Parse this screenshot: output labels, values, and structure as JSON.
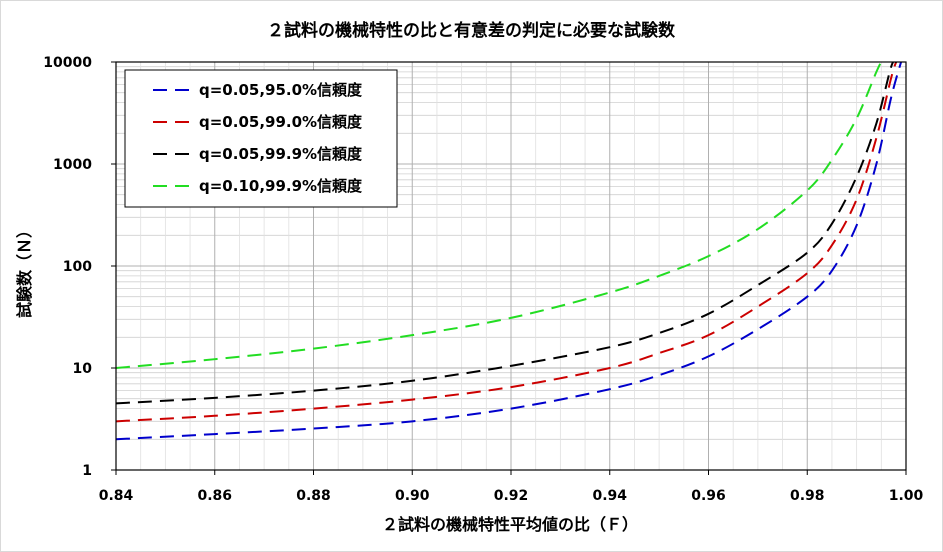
{
  "chart_data": {
    "type": "line",
    "title": "２試料の機械特性の比と有意差の判定に必要な試験数",
    "xlabel": "２試料の機械特性平均値の比（Ｆ）",
    "ylabel": "試験数（Ｎ）",
    "xlim": [
      0.84,
      1.0
    ],
    "ylim": [
      1,
      10000
    ],
    "yscale": "log",
    "grid": true,
    "legend_position": "top-left",
    "x_tick_labels": [
      "0.84",
      "0.86",
      "0.88",
      "0.90",
      "0.92",
      "0.94",
      "0.96",
      "0.98",
      "1.00"
    ],
    "y_tick_labels": [
      "1",
      "10",
      "100",
      "1000",
      "10000"
    ],
    "series": [
      {
        "name": "q=0.05,95.0%信頼度",
        "color": "#0000cc",
        "points": [
          [
            0.84,
            2.0
          ],
          [
            0.86,
            2.25
          ],
          [
            0.88,
            2.55
          ],
          [
            0.9,
            3.0
          ],
          [
            0.92,
            4.0
          ],
          [
            0.94,
            6.2
          ],
          [
            0.95,
            8.5
          ],
          [
            0.96,
            13
          ],
          [
            0.97,
            24
          ],
          [
            0.98,
            50
          ],
          [
            0.985,
            90
          ],
          [
            0.99,
            250
          ],
          [
            0.994,
            1000
          ],
          [
            0.997,
            4500
          ],
          [
            0.999,
            10000
          ]
        ]
      },
      {
        "name": "q=0.05,99.0%信頼度",
        "color": "#cc0000",
        "points": [
          [
            0.84,
            3.0
          ],
          [
            0.86,
            3.4
          ],
          [
            0.88,
            4.0
          ],
          [
            0.9,
            4.9
          ],
          [
            0.92,
            6.5
          ],
          [
            0.94,
            10
          ],
          [
            0.95,
            14
          ],
          [
            0.96,
            21
          ],
          [
            0.97,
            40
          ],
          [
            0.98,
            85
          ],
          [
            0.985,
            160
          ],
          [
            0.99,
            450
          ],
          [
            0.994,
            1800
          ],
          [
            0.997,
            7000
          ],
          [
            0.998,
            10000
          ]
        ]
      },
      {
        "name": "q=0.05,99.9%信頼度",
        "color": "#000000",
        "points": [
          [
            0.84,
            4.5
          ],
          [
            0.86,
            5.1
          ],
          [
            0.88,
            6.0
          ],
          [
            0.9,
            7.5
          ],
          [
            0.92,
            10.5
          ],
          [
            0.94,
            16
          ],
          [
            0.95,
            22
          ],
          [
            0.96,
            34
          ],
          [
            0.97,
            65
          ],
          [
            0.98,
            135
          ],
          [
            0.985,
            260
          ],
          [
            0.99,
            750
          ],
          [
            0.994,
            2500
          ],
          [
            0.997,
            9000
          ],
          [
            0.998,
            10000
          ]
        ]
      },
      {
        "name": "q=0.10,99.9%信頼度",
        "color": "#22dd22",
        "points": [
          [
            0.84,
            10
          ],
          [
            0.86,
            12.2
          ],
          [
            0.88,
            15.5
          ],
          [
            0.9,
            21
          ],
          [
            0.92,
            31
          ],
          [
            0.94,
            55
          ],
          [
            0.95,
            80
          ],
          [
            0.96,
            125
          ],
          [
            0.97,
            230
          ],
          [
            0.98,
            550
          ],
          [
            0.985,
            1100
          ],
          [
            0.99,
            2800
          ],
          [
            0.994,
            8000
          ],
          [
            0.995,
            10000
          ]
        ]
      }
    ]
  }
}
